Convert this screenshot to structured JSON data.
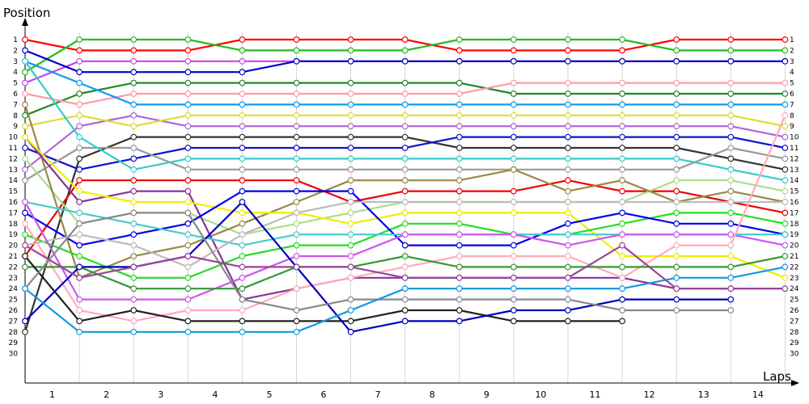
{
  "chart_data": {
    "type": "line",
    "ylabel": "Position",
    "xlabel": "Laps",
    "x_tick_labels": [
      "1",
      "2",
      "3",
      "4",
      "5",
      "6",
      "7",
      "8",
      "9",
      "10",
      "11",
      "12",
      "13",
      "14"
    ],
    "y_tick_labels": [
      "1",
      "2",
      "3",
      "4",
      "5",
      "6",
      "7",
      "8",
      "9",
      "10",
      "11",
      "12",
      "13",
      "14",
      "15",
      "16",
      "17",
      "18",
      "19",
      "20",
      "21",
      "22",
      "23",
      "24",
      "25",
      "26",
      "27",
      "28",
      "29",
      "30"
    ],
    "y_axis_inverted": true,
    "ylim": [
      1,
      30
    ],
    "grid": "vertical",
    "series": [
      {
        "color": "#ff0000",
        "values": [
          1,
          2,
          2,
          2,
          1,
          1,
          1,
          1,
          2,
          2,
          2,
          2,
          1,
          1,
          1
        ]
      },
      {
        "color": "#22bb22",
        "values": [
          4,
          1,
          1,
          1,
          2,
          2,
          2,
          2,
          1,
          1,
          1,
          1,
          2,
          2,
          2
        ]
      },
      {
        "color": "#cc44ee",
        "values": [
          5,
          3,
          3,
          3,
          3,
          3,
          3,
          3,
          3,
          3,
          3,
          3,
          3,
          3,
          3
        ]
      },
      {
        "color": "#0000cc",
        "values": [
          2,
          4,
          4,
          4,
          4,
          3,
          3,
          3,
          3,
          3,
          3,
          3,
          3,
          3,
          3
        ]
      },
      {
        "color": "#aa66dd",
        "values": [
          13,
          9,
          8,
          9,
          9,
          9,
          9,
          9,
          9,
          9,
          9,
          9,
          9,
          9,
          10
        ]
      },
      {
        "color": "#228822",
        "values": [
          8,
          6,
          5,
          5,
          5,
          5,
          5,
          5,
          5,
          6,
          6,
          6,
          6,
          6,
          6
        ]
      },
      {
        "color": "#ff99aa",
        "values": [
          6,
          7,
          6,
          6,
          6,
          6,
          6,
          6,
          6,
          5,
          5,
          5,
          5,
          5,
          5
        ]
      },
      {
        "color": "#1199ee",
        "values": [
          3,
          5,
          7,
          7,
          7,
          7,
          7,
          7,
          7,
          7,
          7,
          7,
          7,
          7,
          7
        ]
      },
      {
        "color": "#dddd33",
        "values": [
          9,
          8,
          9,
          8,
          8,
          8,
          8,
          8,
          8,
          8,
          8,
          8,
          8,
          8,
          9
        ]
      },
      {
        "color": "#333333",
        "values": [
          28,
          12,
          10,
          10,
          10,
          10,
          10,
          10,
          11,
          11,
          11,
          11,
          11,
          12,
          13
        ]
      },
      {
        "color": "#1111cc",
        "values": [
          11,
          13,
          12,
          11,
          11,
          11,
          11,
          11,
          10,
          10,
          10,
          10,
          10,
          10,
          11
        ]
      },
      {
        "color": "#999999",
        "values": [
          14,
          11,
          11,
          13,
          13,
          13,
          13,
          13,
          13,
          13,
          13,
          13,
          13,
          11,
          12
        ]
      },
      {
        "color": "#33cccc",
        "values": [
          3,
          10,
          13,
          12,
          12,
          12,
          12,
          12,
          12,
          12,
          12,
          12,
          12,
          13,
          14
        ]
      },
      {
        "color": "#ee0000",
        "values": [
          21,
          14,
          14,
          14,
          14,
          14,
          16,
          15,
          15,
          15,
          14,
          15,
          15,
          16,
          17
        ]
      },
      {
        "color": "#aadd88",
        "values": [
          12,
          18,
          17,
          17,
          19,
          18,
          17,
          16,
          16,
          16,
          16,
          16,
          14,
          14,
          15
        ]
      },
      {
        "color": "#998844",
        "values": [
          7,
          23,
          21,
          20,
          18,
          16,
          14,
          14,
          14,
          13,
          15,
          14,
          16,
          15,
          16
        ]
      },
      {
        "color": "#883399",
        "values": [
          10,
          16,
          15,
          15,
          25,
          24,
          23,
          23,
          23,
          23,
          23,
          23,
          24,
          24,
          24
        ]
      },
      {
        "color": "#eeee00",
        "values": [
          10,
          15,
          16,
          16,
          17,
          17,
          18,
          17,
          17,
          17,
          17,
          21,
          21,
          21,
          23
        ]
      },
      {
        "color": "#22dd22",
        "values": [
          19,
          21,
          23,
          23,
          21,
          20,
          20,
          18,
          18,
          19,
          19,
          18,
          17,
          17,
          18
        ]
      },
      {
        "color": "#0000ee",
        "values": [
          17,
          20,
          19,
          18,
          15,
          15,
          15,
          20,
          20,
          20,
          18,
          17,
          18,
          18,
          19
        ]
      },
      {
        "color": "#44cccc",
        "values": [
          16,
          17,
          18,
          19,
          20,
          19,
          19,
          19,
          19,
          19,
          19,
          19,
          19,
          19,
          19
        ]
      },
      {
        "color": "#bbbbbb",
        "values": [
          20,
          19,
          20,
          22,
          19,
          17,
          16,
          16,
          16,
          16,
          16,
          16,
          16,
          16,
          16
        ]
      },
      {
        "color": "#cc55ee",
        "values": [
          16,
          25,
          25,
          25,
          23,
          21,
          21,
          19,
          19,
          19,
          20,
          19,
          19,
          19,
          20
        ]
      },
      {
        "color": "#ffaabb",
        "values": [
          18,
          26,
          27,
          26,
          26,
          24,
          23,
          22,
          21,
          21,
          21,
          23,
          20,
          20,
          8
        ]
      },
      {
        "color": "#339933",
        "values": [
          22,
          22,
          24,
          24,
          24,
          22,
          22,
          21,
          22,
          22,
          22,
          22,
          22,
          22,
          21
        ]
      },
      {
        "color": "#222222",
        "values": [
          21,
          27,
          26,
          27,
          27,
          27,
          27,
          26,
          26,
          27,
          27,
          27,
          null,
          null,
          null
        ]
      },
      {
        "color": "#0000bb",
        "values": [
          27,
          22,
          22,
          21,
          16,
          22,
          28,
          27,
          27,
          26,
          26,
          25,
          25,
          25,
          null
        ]
      },
      {
        "color": "#888888",
        "values": [
          24,
          18,
          17,
          17,
          25,
          26,
          25,
          25,
          25,
          25,
          25,
          26,
          26,
          26,
          null
        ]
      },
      {
        "color": "#1199dd",
        "values": [
          24,
          28,
          28,
          28,
          28,
          28,
          26,
          24,
          24,
          24,
          24,
          24,
          23,
          23,
          22
        ]
      },
      {
        "color": "#994499",
        "values": [
          20,
          23,
          22,
          21,
          22,
          22,
          22,
          23,
          23,
          23,
          23,
          20,
          24,
          24,
          24
        ]
      }
    ]
  }
}
